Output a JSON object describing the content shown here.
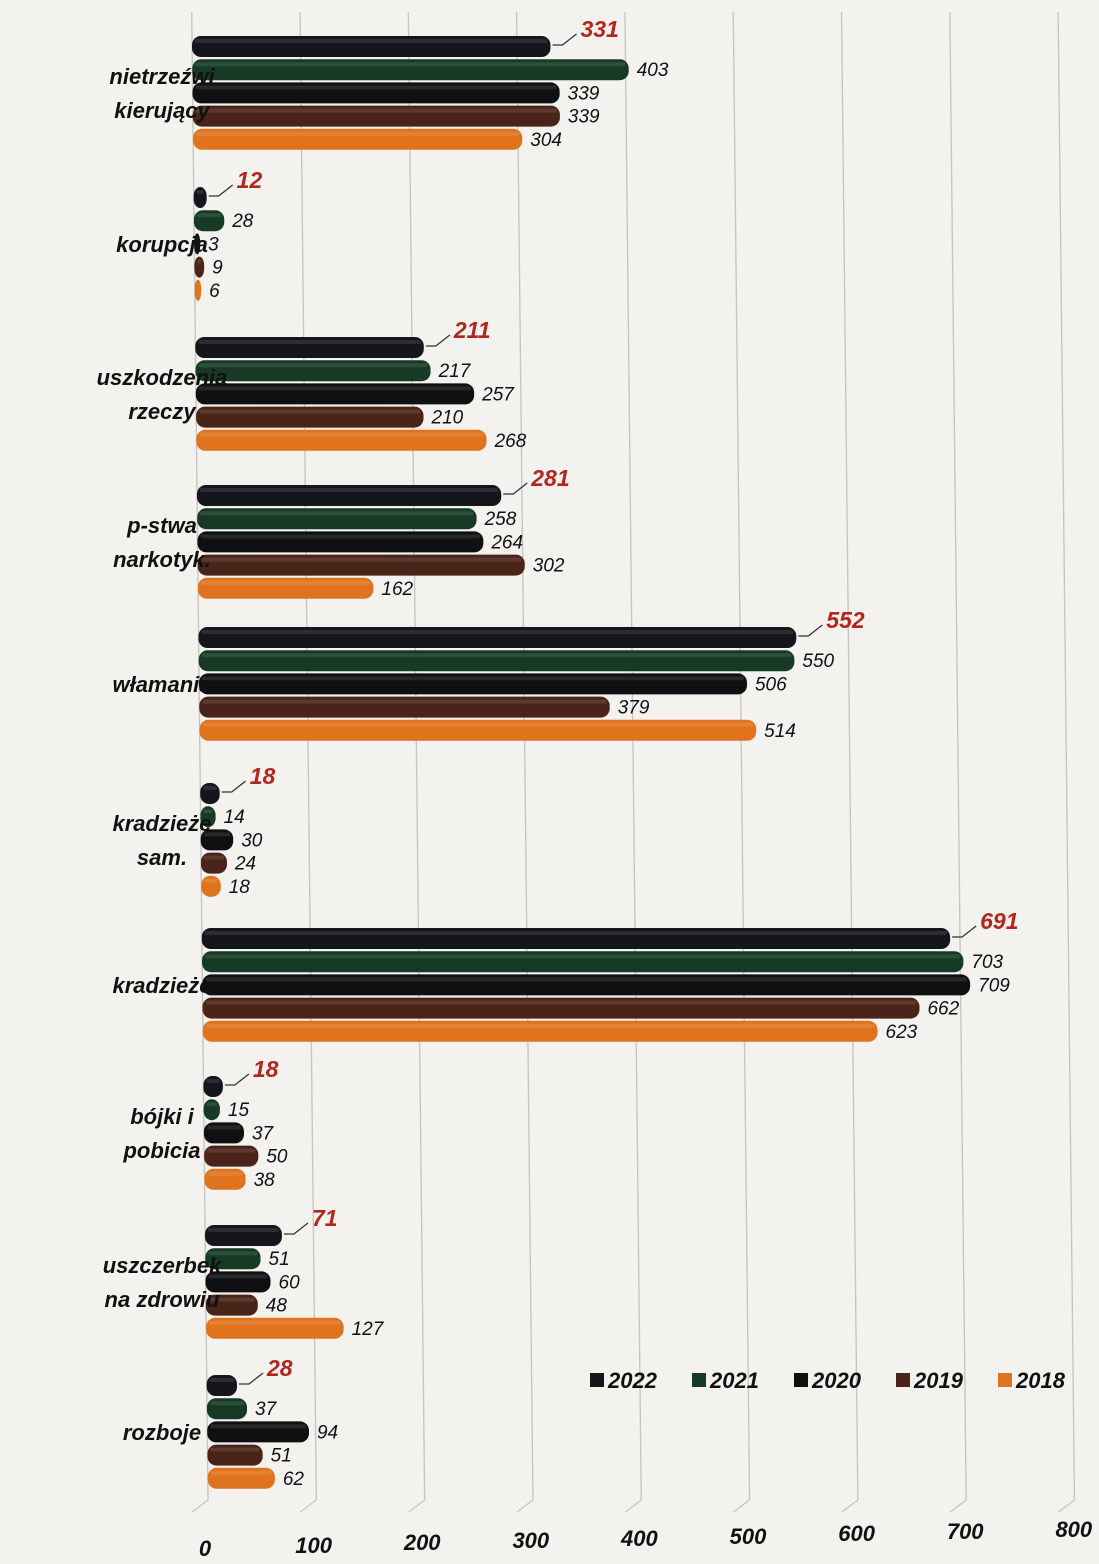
{
  "chart_data": {
    "type": "bar",
    "orientation": "horizontal",
    "categories": [
      "nietrzeźwi kierujący",
      "korupcja",
      "uszkodzenia rzeczy",
      "p-stwa narkotyk.",
      "włamania",
      "kradzieże sam.",
      "kradzieże",
      "bójki i pobicia",
      "uszczerbek na zdrowiu",
      "rozboje"
    ],
    "series": [
      {
        "name": "2022",
        "color": "#15151c",
        "values": [
          331,
          12,
          211,
          281,
          552,
          18,
          691,
          18,
          71,
          28
        ]
      },
      {
        "name": "2021",
        "color": "#163a24",
        "values": [
          403,
          28,
          217,
          258,
          550,
          14,
          703,
          15,
          51,
          37
        ]
      },
      {
        "name": "2020",
        "color": "#101012",
        "values": [
          339,
          3,
          257,
          264,
          506,
          30,
          709,
          37,
          60,
          94
        ]
      },
      {
        "name": "2019",
        "color": "#4a2418",
        "values": [
          339,
          9,
          210,
          302,
          379,
          24,
          662,
          50,
          48,
          51
        ]
      },
      {
        "name": "2018",
        "color": "#e0731e",
        "values": [
          304,
          6,
          268,
          162,
          514,
          18,
          623,
          38,
          127,
          62
        ]
      }
    ],
    "highlight_series": "2022",
    "highlight_color": "#b3261e",
    "xlim": [
      0,
      800
    ],
    "x_ticks": [
      "0",
      "100",
      "200",
      "300",
      "400",
      "500",
      "600",
      "700",
      "800"
    ],
    "grid": "vertical",
    "legend_position": "bottom-right",
    "title": "",
    "xlabel": "",
    "ylabel": ""
  }
}
